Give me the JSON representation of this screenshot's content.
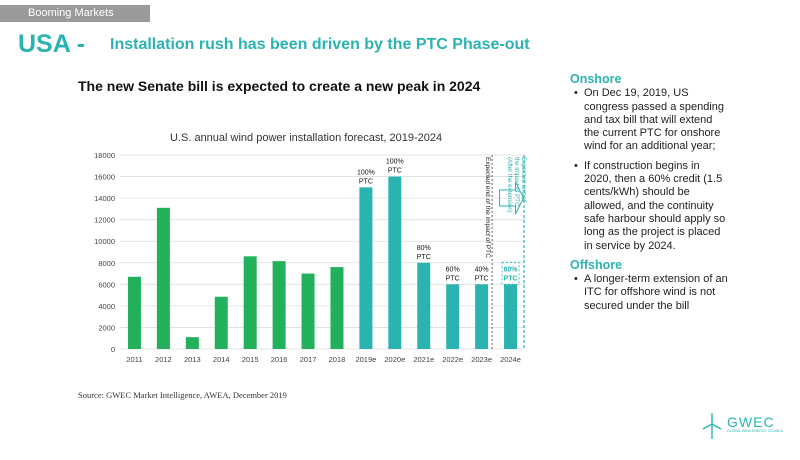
{
  "header": {
    "tag": "Booming Markets",
    "big_title": "USA -",
    "subtitle": "Installation rush has been driven by the PTC Phase-out",
    "headline": "The new Senate bill is expected to create a new peak in 2024"
  },
  "colors": {
    "accent": "#2ab3b1",
    "bar_green": "#22b15a",
    "bar_teal": "#2ab3b1",
    "tag_bg": "#9a9a9a"
  },
  "chart_data": {
    "type": "bar",
    "title": "U.S. annual wind power installation forecast,  2019-2024",
    "categories": [
      "2011",
      "2012",
      "2013",
      "2014",
      "2015",
      "2016",
      "2017",
      "2018",
      "2019e",
      "2020e",
      "2021e",
      "2022e",
      "2023e",
      "2024e"
    ],
    "values": [
      6700,
      13100,
      1100,
      4850,
      8600,
      8150,
      7000,
      7600,
      15000,
      16000,
      8000,
      6000,
      6000,
      6000
    ],
    "bar_colors": [
      "green",
      "green",
      "green",
      "green",
      "green",
      "green",
      "green",
      "green",
      "teal",
      "teal",
      "teal",
      "teal",
      "teal",
      "teal"
    ],
    "bar_labels": [
      {
        "index": 8,
        "line1": "100%",
        "line2": "PTC"
      },
      {
        "index": 9,
        "line1": "100%",
        "line2": "PTC"
      },
      {
        "index": 10,
        "line1": "80%",
        "line2": "PTC"
      },
      {
        "index": 11,
        "line1": "60%",
        "line2": "PTC"
      },
      {
        "index": 12,
        "line1": "40%",
        "line2": "PTC"
      },
      {
        "index": 13,
        "line1": "60%",
        "line2": "PTC",
        "teal": true
      }
    ],
    "yticks": [
      "0",
      "2000",
      "4000",
      "6000",
      "8000",
      "10000",
      "12000",
      "14000",
      "16000",
      "18000"
    ],
    "ylim": [
      0,
      18000
    ],
    "grid": true,
    "xlabel": "",
    "ylabel": "",
    "annotations": {
      "ptc_end": "Expected end of the impact of PTC",
      "ptc_end_ext_line1": "Expected end of",
      "ptc_end_ext_line2": "the impact of PTC",
      "ptc_end_ext_line3": "(After the extension)"
    }
  },
  "source": "Source: GWEC Market Intelligence, AWEA, December 2019",
  "sidebar": {
    "onshore_heading": "Onshore",
    "onshore_items": [
      "On Dec 19, 2019, US congress passed a spending and tax bill that will extend the current PTC for onshore wind for an additional year;",
      "If construction begins in 2020, then a 60% credit (1.5 cents/kWh) should be allowed, and the continuity safe harbour should apply so long as the project is placed in service by 2024."
    ],
    "offshore_heading": "Offshore",
    "offshore_items": [
      "A longer-term extension of an ITC for offshore wind is not secured under the bill"
    ]
  },
  "logo": {
    "name": "GWEC",
    "tagline": "GLOBAL WIND ENERGY COUNCIL"
  }
}
